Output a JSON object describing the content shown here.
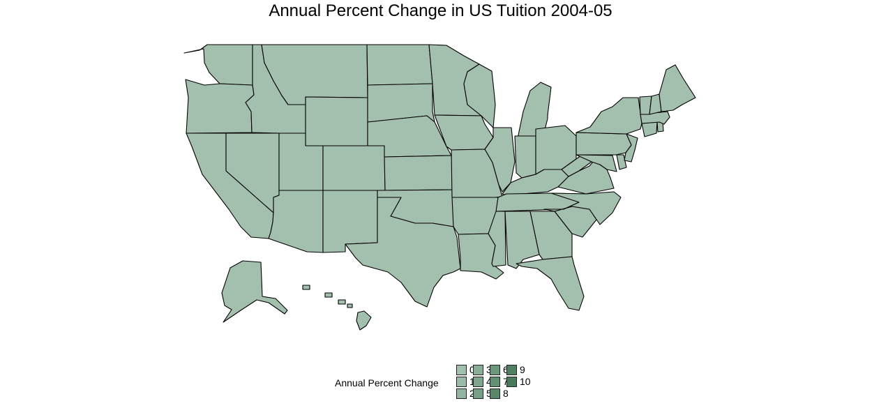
{
  "title": "Annual Percent Change in US Tuition 2004-05",
  "map": {
    "state_fill": "#a3bfae",
    "stroke": "#000000",
    "regions": [
      "Washington",
      "Oregon",
      "California",
      "Idaho",
      "Nevada",
      "Montana",
      "Wyoming",
      "Utah",
      "Arizona",
      "Colorado",
      "New Mexico",
      "North Dakota",
      "South Dakota",
      "Nebraska",
      "Kansas",
      "Oklahoma",
      "Texas",
      "Minnesota",
      "Iowa",
      "Missouri",
      "Arkansas",
      "Louisiana",
      "Wisconsin",
      "Illinois",
      "Michigan",
      "Indiana",
      "Ohio",
      "Kentucky",
      "Tennessee",
      "Mississippi",
      "Alabama",
      "Georgia",
      "Florida",
      "South Carolina",
      "North Carolina",
      "Virginia",
      "West Virginia",
      "Maryland",
      "Delaware",
      "Pennsylvania",
      "New Jersey",
      "New York",
      "Connecticut",
      "Rhode Island",
      "Massachusetts",
      "Vermont",
      "New Hampshire",
      "Maine",
      "Alaska",
      "Hawaii"
    ]
  },
  "legend": {
    "title": "Annual Percent Change",
    "items": [
      {
        "label": "0",
        "color": "#a3bfae"
      },
      {
        "label": "1",
        "color": "#9cbaa8"
      },
      {
        "label": "2",
        "color": "#94b4a1"
      },
      {
        "label": "3",
        "color": "#8aad98"
      },
      {
        "label": "4",
        "color": "#80a68f"
      },
      {
        "label": "5",
        "color": "#779f87"
      },
      {
        "label": "6",
        "color": "#6d977d"
      },
      {
        "label": "7",
        "color": "#638f74"
      },
      {
        "label": "8",
        "color": "#5a886b"
      },
      {
        "label": "9",
        "color": "#508062"
      },
      {
        "label": "10",
        "color": "#47795a"
      }
    ]
  }
}
